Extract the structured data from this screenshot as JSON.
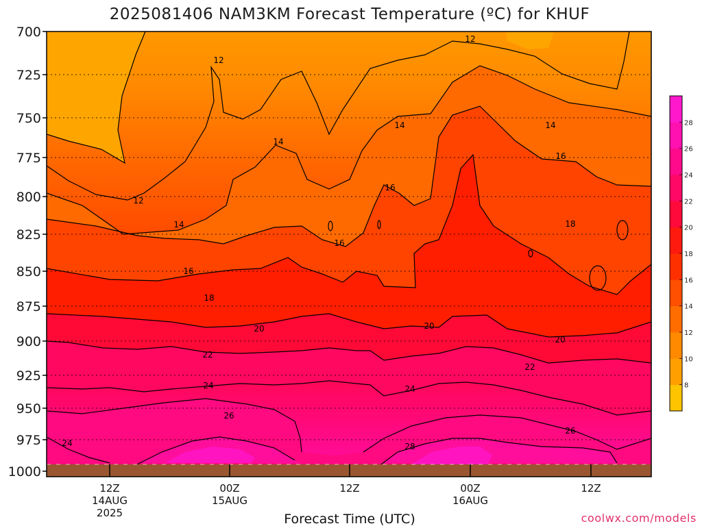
{
  "title": "2025081406 NAM3KM Forecast Temperature (ºC) for KHUF",
  "xlabel": "Forecast Time (UTC)",
  "credit": "coolwx.com/models",
  "y_ticks": [
    "700",
    "725",
    "750",
    "775",
    "800",
    "825",
    "850",
    "875",
    "900",
    "925",
    "950",
    "975",
    "1000"
  ],
  "x_ticks": [
    {
      "lines": [
        "12Z",
        "14AUG",
        "2025"
      ]
    },
    {
      "lines": [
        "00Z",
        "15AUG"
      ]
    },
    {
      "lines": [
        "12Z"
      ]
    },
    {
      "lines": [
        "00Z",
        "16AUG"
      ]
    },
    {
      "lines": [
        "12Z"
      ]
    }
  ],
  "colorbar": {
    "labels": [
      "8",
      "10",
      "12",
      "14",
      "16",
      "18",
      "20",
      "22",
      "24",
      "26",
      "28"
    ],
    "colors": [
      "#ffc400",
      "#ff9f00",
      "#ff8a00",
      "#ff6d00",
      "#ff4f00",
      "#ff3000",
      "#ff1a10",
      "#ff0a3a",
      "#ff0866",
      "#ff0a8a",
      "#ff10b0",
      "#ff18cc"
    ]
  },
  "chart_data": {
    "type": "heatmap",
    "title": "2025081406 NAM3KM Forecast Temperature (ºC) for KHUF",
    "xlabel": "Forecast Time (UTC)",
    "ylabel": "",
    "x": [
      "12Z 14AUG 2025",
      "00Z 15AUG",
      "12Z",
      "00Z 16AUG",
      "12Z"
    ],
    "y": [
      700,
      725,
      750,
      775,
      800,
      825,
      850,
      875,
      900,
      925,
      950,
      975,
      1000
    ],
    "y_inverted": true,
    "contour_levels": [
      12,
      14,
      16,
      18,
      20,
      22,
      24,
      26,
      28
    ],
    "contour_labels": [
      {
        "text": "12"
      },
      {
        "text": "12"
      },
      {
        "text": "12"
      },
      {
        "text": "14"
      },
      {
        "text": "14"
      },
      {
        "text": "14"
      },
      {
        "text": "14"
      },
      {
        "text": "16"
      },
      {
        "text": "16"
      },
      {
        "text": "16"
      },
      {
        "text": "16"
      },
      {
        "text": "18"
      },
      {
        "text": "18"
      },
      {
        "text": "20"
      },
      {
        "text": "20"
      },
      {
        "text": "20"
      },
      {
        "text": "22"
      },
      {
        "text": "22"
      },
      {
        "text": "24"
      },
      {
        "text": "24"
      },
      {
        "text": "24"
      },
      {
        "text": "26"
      },
      {
        "text": "26"
      },
      {
        "text": "28"
      }
    ],
    "grid": true,
    "legend": "right colorbar"
  }
}
